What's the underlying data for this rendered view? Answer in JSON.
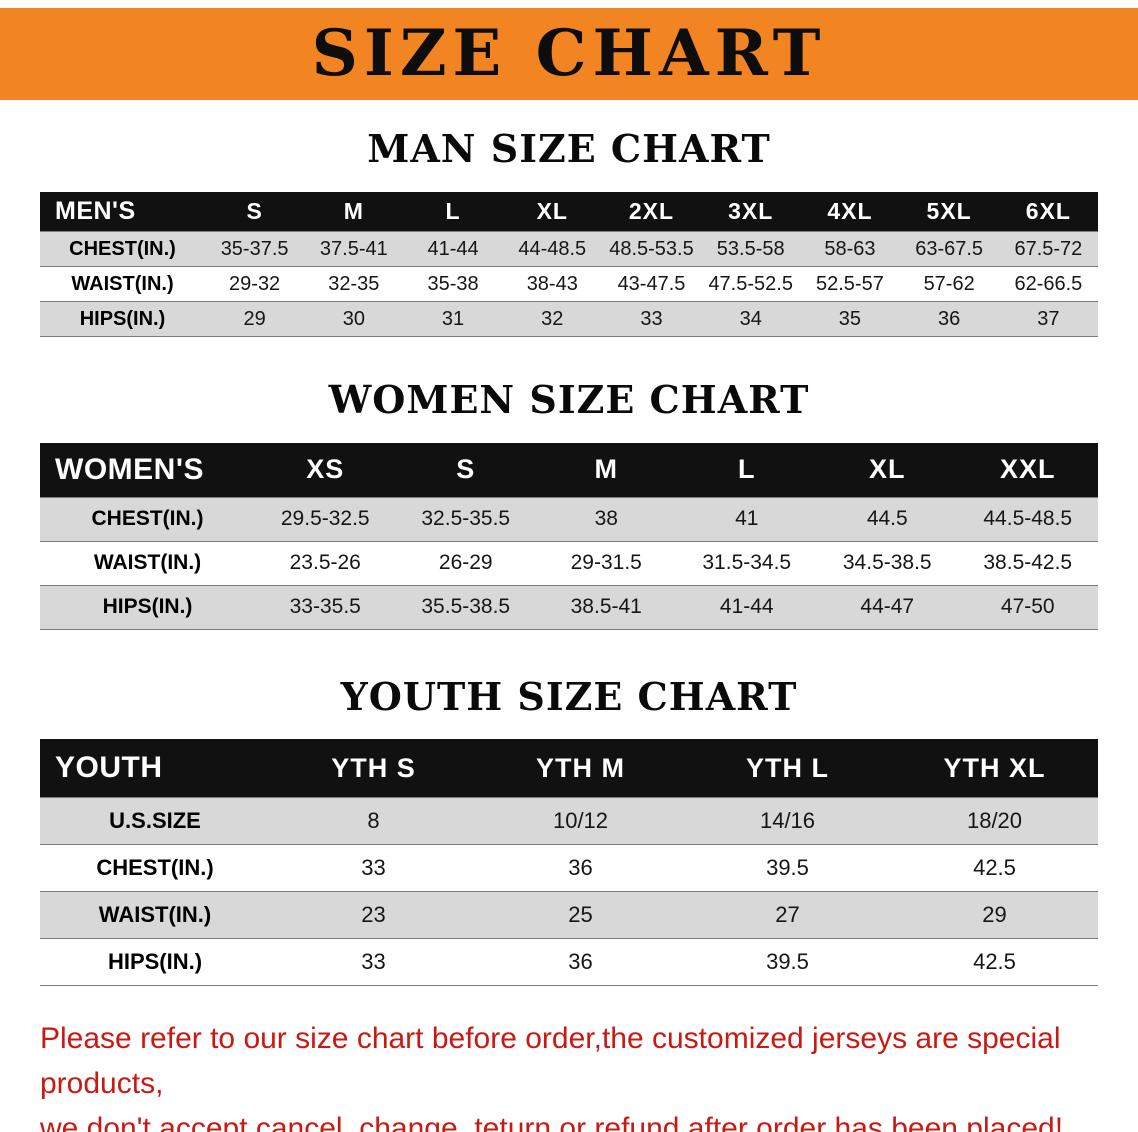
{
  "banner": {
    "title": "SIZE CHART"
  },
  "colors": {
    "banner_bg": "#f28522",
    "table_header_bg": "#111111",
    "row_stripe": "#d8d8d8",
    "disclaimer_text": "#c81a12"
  },
  "chart_data": [
    {
      "type": "table",
      "title": "MAN SIZE CHART",
      "corner_label": "MEN'S",
      "columns": [
        "S",
        "M",
        "L",
        "XL",
        "2XL",
        "3XL",
        "4XL",
        "5XL",
        "6XL"
      ],
      "rows": [
        {
          "label": "CHEST(IN.)",
          "values": [
            "35-37.5",
            "37.5-41",
            "41-44",
            "44-48.5",
            "48.5-53.5",
            "53.5-58",
            "58-63",
            "63-67.5",
            "67.5-72"
          ]
        },
        {
          "label": "WAIST(IN.)",
          "values": [
            "29-32",
            "32-35",
            "35-38",
            "38-43",
            "43-47.5",
            "47.5-52.5",
            "52.5-57",
            "57-62",
            "62-66.5"
          ]
        },
        {
          "label": "HIPS(IN.)",
          "values": [
            "29",
            "30",
            "31",
            "32",
            "33",
            "34",
            "35",
            "36",
            "37"
          ]
        }
      ]
    },
    {
      "type": "table",
      "title": "WOMEN SIZE CHART",
      "corner_label": "WOMEN'S",
      "columns": [
        "XS",
        "S",
        "M",
        "L",
        "XL",
        "XXL"
      ],
      "rows": [
        {
          "label": "CHEST(IN.)",
          "values": [
            "29.5-32.5",
            "32.5-35.5",
            "38",
            "41",
            "44.5",
            "44.5-48.5"
          ]
        },
        {
          "label": "WAIST(IN.)",
          "values": [
            "23.5-26",
            "26-29",
            "29-31.5",
            "31.5-34.5",
            "34.5-38.5",
            "38.5-42.5"
          ]
        },
        {
          "label": "HIPS(IN.)",
          "values": [
            "33-35.5",
            "35.5-38.5",
            "38.5-41",
            "41-44",
            "44-47",
            "47-50"
          ]
        }
      ]
    },
    {
      "type": "table",
      "title": "YOUTH SIZE CHART",
      "corner_label": "YOUTH",
      "columns": [
        "YTH S",
        "YTH M",
        "YTH L",
        "YTH XL"
      ],
      "rows": [
        {
          "label": "U.S.SIZE",
          "values": [
            "8",
            "10/12",
            "14/16",
            "18/20"
          ]
        },
        {
          "label": "CHEST(IN.)",
          "values": [
            "33",
            "36",
            "39.5",
            "42.5"
          ]
        },
        {
          "label": "WAIST(IN.)",
          "values": [
            "23",
            "25",
            "27",
            "29"
          ]
        },
        {
          "label": "HIPS(IN.)",
          "values": [
            "33",
            "36",
            "39.5",
            "42.5"
          ]
        }
      ]
    }
  ],
  "disclaimer": {
    "line1": "Please refer to our size chart before order,the customized jerseys are special products,",
    "line2": "we don't accept cancel, change, teturn or refund after order has been placed!"
  }
}
